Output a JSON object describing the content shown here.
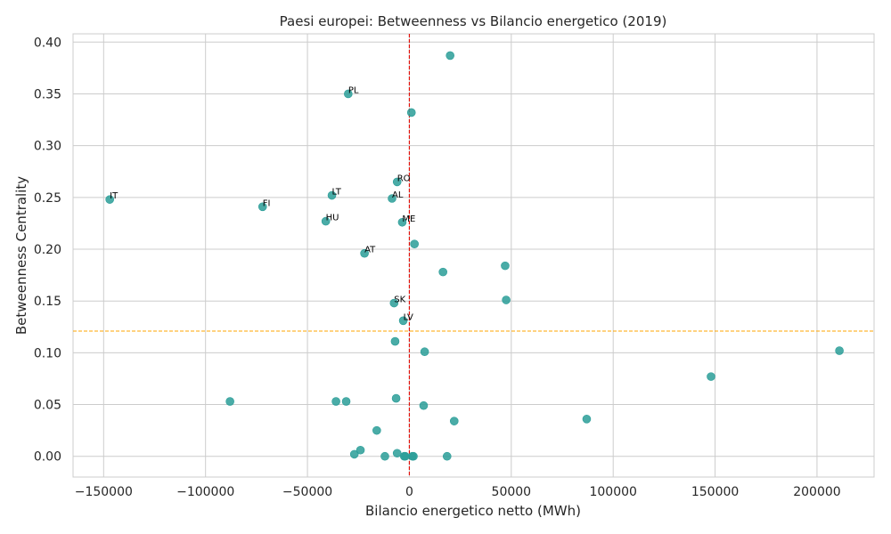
{
  "chart_data": {
    "type": "scatter",
    "title": "Paesi europei: Betweenness vs Bilancio energetico (2019)",
    "xlabel": "Bilancio energetico netto (MWh)",
    "ylabel": "Betweenness Centrality",
    "xlim": [
      -165000,
      228000
    ],
    "ylim": [
      -0.02,
      0.408
    ],
    "xticks": [
      -150000,
      -100000,
      -50000,
      0,
      50000,
      100000,
      150000,
      200000
    ],
    "xtick_labels": [
      "−150000",
      "−100000",
      "−50000",
      "0",
      "50000",
      "100000",
      "150000",
      "200000"
    ],
    "yticks": [
      0.0,
      0.05,
      0.1,
      0.15,
      0.2,
      0.25,
      0.3,
      0.35,
      0.4
    ],
    "ytick_labels": [
      "0.00",
      "0.05",
      "0.10",
      "0.15",
      "0.20",
      "0.25",
      "0.30",
      "0.35",
      "0.40"
    ],
    "grid": true,
    "marker_color": "#2a9d98",
    "vline": {
      "x": 0,
      "color": "#e3120b",
      "style": "dashed"
    },
    "hline": {
      "y": 0.121,
      "color": "#ffa500",
      "style": "dashed"
    },
    "points": [
      {
        "x": 20000,
        "y": 0.387,
        "label": ""
      },
      {
        "x": -30000,
        "y": 0.35,
        "label": "PL"
      },
      {
        "x": 1000,
        "y": 0.332,
        "label": ""
      },
      {
        "x": -6000,
        "y": 0.265,
        "label": "RO"
      },
      {
        "x": -38000,
        "y": 0.252,
        "label": "LT"
      },
      {
        "x": -147000,
        "y": 0.248,
        "label": "IT"
      },
      {
        "x": -8500,
        "y": 0.249,
        "label": "AL"
      },
      {
        "x": -72000,
        "y": 0.241,
        "label": "FI"
      },
      {
        "x": -41000,
        "y": 0.227,
        "label": "HU"
      },
      {
        "x": -3500,
        "y": 0.226,
        "label": "ME"
      },
      {
        "x": 2500,
        "y": 0.205,
        "label": ""
      },
      {
        "x": -22000,
        "y": 0.196,
        "label": "AT"
      },
      {
        "x": 47000,
        "y": 0.184,
        "label": ""
      },
      {
        "x": 16500,
        "y": 0.178,
        "label": ""
      },
      {
        "x": 47500,
        "y": 0.151,
        "label": ""
      },
      {
        "x": -7500,
        "y": 0.148,
        "label": "SK"
      },
      {
        "x": -3000,
        "y": 0.131,
        "label": "LV"
      },
      {
        "x": -7000,
        "y": 0.111,
        "label": ""
      },
      {
        "x": 7500,
        "y": 0.101,
        "label": ""
      },
      {
        "x": 211000,
        "y": 0.102,
        "label": ""
      },
      {
        "x": 148000,
        "y": 0.077,
        "label": ""
      },
      {
        "x": -88000,
        "y": 0.053,
        "label": ""
      },
      {
        "x": -36000,
        "y": 0.053,
        "label": ""
      },
      {
        "x": -31000,
        "y": 0.053,
        "label": ""
      },
      {
        "x": -6500,
        "y": 0.056,
        "label": ""
      },
      {
        "x": 7000,
        "y": 0.049,
        "label": ""
      },
      {
        "x": 22000,
        "y": 0.034,
        "label": ""
      },
      {
        "x": 87000,
        "y": 0.036,
        "label": ""
      },
      {
        "x": -16000,
        "y": 0.025,
        "label": ""
      },
      {
        "x": -24000,
        "y": 0.006,
        "label": ""
      },
      {
        "x": -27000,
        "y": 0.002,
        "label": ""
      },
      {
        "x": -6000,
        "y": 0.003,
        "label": ""
      },
      {
        "x": -12000,
        "y": 0.0,
        "label": ""
      },
      {
        "x": -2500,
        "y": 0.0,
        "label": ""
      },
      {
        "x": -2000,
        "y": 0.0,
        "label": ""
      },
      {
        "x": 1500,
        "y": 0.0,
        "label": ""
      },
      {
        "x": 2000,
        "y": 0.0,
        "label": ""
      },
      {
        "x": 18500,
        "y": 0.0,
        "label": ""
      }
    ]
  }
}
